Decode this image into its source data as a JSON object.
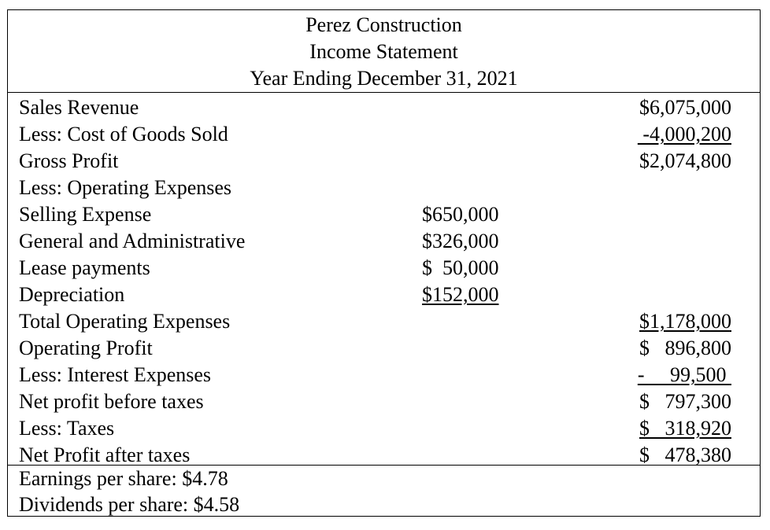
{
  "header": {
    "company": "Perez Construction",
    "statement": "Income Statement",
    "period": "Year Ending December 31, 2021"
  },
  "rows": [
    {
      "label": "Sales Revenue",
      "mid": "",
      "amount": "$6,075,000"
    },
    {
      "label": "Less: Cost of Goods Sold",
      "mid": "",
      "amount": " -4,000,200"
    },
    {
      "label": "Gross Profit",
      "mid": "",
      "amount": "$2,074,800"
    },
    {
      "label": "Less: Operating Expenses",
      "mid": "",
      "amount": ""
    },
    {
      "label": "Selling Expense",
      "mid": "$650,000",
      "amount": ""
    },
    {
      "label": "General and Administrative",
      "mid": "$326,000",
      "amount": ""
    },
    {
      "label": "Lease payments",
      "mid": "$  50,000",
      "amount": ""
    },
    {
      "label": "Depreciation",
      "mid": "$152,000",
      "amount": ""
    },
    {
      "label": "Total Operating Expenses",
      "mid": "",
      "amount": "$1,178,000"
    },
    {
      "label": "Operating Profit",
      "mid": "",
      "amount": "$   896,800"
    },
    {
      "label": "Less: Interest Expenses",
      "mid": "",
      "amount": "-     99,500 "
    },
    {
      "label": "Net profit before taxes",
      "mid": "",
      "amount": "$   797,300"
    },
    {
      "label": "Less: Taxes",
      "mid": "",
      "amount": "$   318,920"
    },
    {
      "label": "Net Profit after taxes",
      "mid": "",
      "amount": "$   478,380"
    }
  ],
  "footer": {
    "eps": "Earnings per share: $4.78",
    "dps": "Dividends per share: $4.58"
  }
}
